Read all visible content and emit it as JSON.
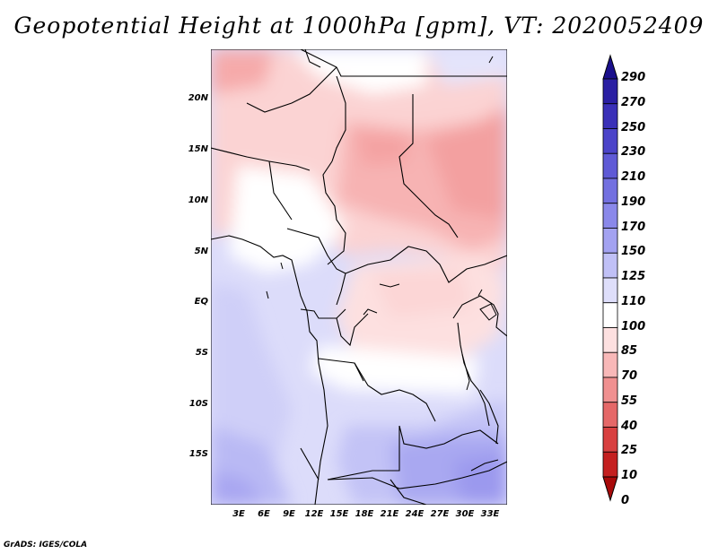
{
  "title": "Geopotential Height at 1000hPa [gpm], VT: 2020052409",
  "y_axis_labels": [
    "20N",
    "15N",
    "10N",
    "5N",
    "EQ",
    "5S",
    "10S",
    "15S"
  ],
  "x_axis_labels": [
    "3E",
    "6E",
    "9E",
    "12E",
    "15E",
    "18E",
    "21E",
    "24E",
    "27E",
    "30E",
    "33E"
  ],
  "colorbar": {
    "labels": [
      "290",
      "270",
      "250",
      "230",
      "210",
      "190",
      "170",
      "150",
      "125",
      "110",
      "100",
      "85",
      "70",
      "55",
      "40",
      "25",
      "10",
      "0"
    ],
    "colors": [
      "#1a0f8c",
      "#2a1fa3",
      "#3a30b8",
      "#4b44c9",
      "#5f5ad6",
      "#7370e0",
      "#8a88ea",
      "#a3a2f1",
      "#c0c0f6",
      "#dedefa",
      "#ffffff",
      "#fde0e0",
      "#f8b8b8",
      "#f09090",
      "#e56868",
      "#d84040",
      "#c42020",
      "#a80a0a"
    ]
  },
  "credit": "GrADS: IGES/COLA"
}
